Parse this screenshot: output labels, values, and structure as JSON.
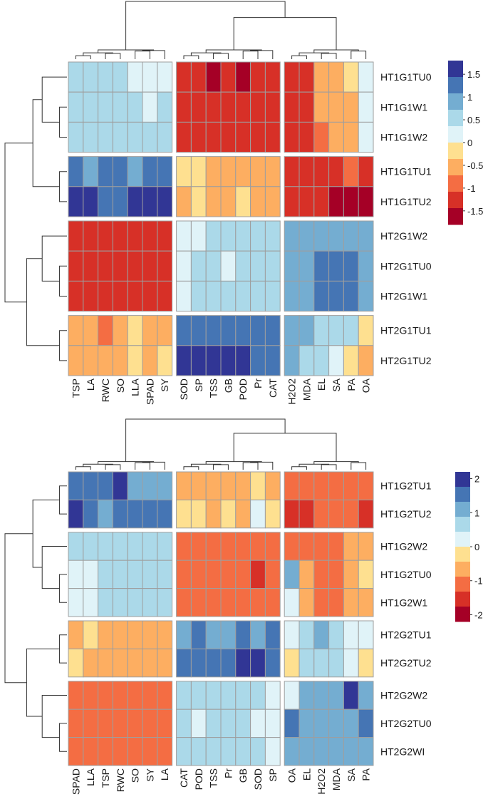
{
  "palette": {
    "cell_border": "#9e9e9e",
    "dendrogram": "#333333",
    "scale": [
      "#a50026",
      "#d73027",
      "#f46d43",
      "#fdae61",
      "#fee090",
      "#e0f3f8",
      "#abd9e9",
      "#74add1",
      "#4575b4",
      "#313695"
    ]
  },
  "chart_data": [
    {
      "type": "heatmap",
      "title": "",
      "rows": [
        "HT1G1TU0",
        "HT1G1W1",
        "HT1G1W2",
        "HT1G1TU1",
        "HT1G1TU2",
        "HT2G1W2",
        "HT2G1TU0",
        "HT2G1W1",
        "HT2G1TU1",
        "HT2G1TU2"
      ],
      "columns": [
        "TSP",
        "LA",
        "RWC",
        "SO",
        "LLA",
        "SPAD",
        "SY",
        "SOD",
        "SP",
        "TSS",
        "GB",
        "POD",
        "Pr",
        "CAT",
        "H2O2",
        "MDA",
        "EL",
        "SA",
        "PA",
        "OA"
      ],
      "row_groups": [
        3,
        2,
        3,
        2
      ],
      "column_groups": [
        7,
        7,
        6
      ],
      "legend": {
        "ticks": [
          1.5,
          1,
          0.5,
          0,
          -0.5,
          -1,
          -1.5
        ],
        "tick_labels": [
          "1.5",
          "1",
          "0.5",
          "0",
          "-0.5",
          "-1",
          "-1.5"
        ],
        "range": [
          -1.8,
          1.8
        ]
      },
      "values": [
        [
          0.5,
          0.5,
          0.5,
          0.5,
          0.2,
          0.2,
          0.2,
          -1.3,
          -1.3,
          -1.6,
          -1.3,
          -1.6,
          -1.3,
          -1.2,
          -1.2,
          -1.2,
          -0.6,
          -0.6,
          -0.2,
          0.2
        ],
        [
          0.5,
          0.5,
          0.5,
          0.5,
          0.5,
          0.2,
          0.5,
          -1.3,
          -1.3,
          -1.2,
          -1.2,
          -1.3,
          -1.2,
          -1.3,
          -1.2,
          -1.2,
          -0.6,
          -0.6,
          -0.6,
          0.2
        ],
        [
          0.5,
          0.5,
          0.5,
          0.5,
          0.5,
          0.5,
          0.5,
          -1.1,
          -1.1,
          -1.1,
          -1.1,
          -1.3,
          -1.1,
          -1.1,
          -1.1,
          -1.1,
          -1.0,
          -0.6,
          -0.6,
          0.2
        ],
        [
          1.1,
          0.9,
          1.2,
          1.1,
          0.9,
          1.2,
          1.2,
          -0.2,
          -0.2,
          -0.6,
          -0.6,
          -0.6,
          -0.6,
          -0.6,
          -1.1,
          -1.1,
          -1.1,
          -1.1,
          -1.0,
          -1.3
        ],
        [
          1.8,
          1.8,
          1.3,
          1.3,
          1.6,
          1.6,
          1.7,
          -0.6,
          -0.3,
          -0.6,
          -0.6,
          -0.2,
          -0.6,
          -0.6,
          -1.1,
          -1.1,
          -1.4,
          -1.8,
          -1.8,
          -1.8
        ],
        [
          -1.1,
          -1.1,
          -1.1,
          -1.2,
          -1.3,
          -1.1,
          -1.1,
          0.2,
          0.2,
          0.5,
          0.5,
          0.5,
          0.5,
          0.5,
          0.9,
          0.9,
          0.9,
          0.9,
          0.9,
          0.9
        ],
        [
          -1.1,
          -1.1,
          -1.3,
          -1.3,
          -1.3,
          -1.1,
          -1.3,
          0.2,
          0.5,
          0.5,
          0.2,
          0.5,
          0.5,
          0.5,
          0.9,
          0.9,
          1.2,
          1.2,
          1.2,
          0.9
        ],
        [
          -1.1,
          -1.1,
          -1.1,
          -1.3,
          -1.3,
          -1.1,
          -1.3,
          0.2,
          0.5,
          0.5,
          0.5,
          0.5,
          0.5,
          0.5,
          0.9,
          0.9,
          1.2,
          1.2,
          1.2,
          0.9
        ],
        [
          -0.6,
          -0.6,
          -1.0,
          -0.6,
          -0.2,
          -0.6,
          -0.6,
          1.2,
          1.2,
          1.2,
          1.2,
          1.2,
          1.2,
          1.2,
          0.9,
          0.9,
          0.5,
          0.5,
          0.5,
          -0.2
        ],
        [
          -0.6,
          -0.6,
          -0.6,
          -0.6,
          -0.2,
          -0.6,
          -0.2,
          1.7,
          1.7,
          1.7,
          1.6,
          1.6,
          1.2,
          1.2,
          0.9,
          0.5,
          0.5,
          0.2,
          -0.2,
          -0.6
        ]
      ]
    },
    {
      "type": "heatmap",
      "title": "",
      "rows": [
        "HT1G2TU1",
        "HT1G2TU2",
        "HT1G2W2",
        "HT1G2TU0",
        "HT1G2W1",
        "HT2G2TU1",
        "HT2G2TU2",
        "HT2G2W2",
        "HT2G2TU0",
        "HT2G2WI"
      ],
      "columns": [
        "SPAD",
        "LLA",
        "TSP",
        "RWC",
        "SO",
        "SY",
        "LA",
        "CAT",
        "POD",
        "TSS",
        "Pr",
        "GB",
        "SOD",
        "SP",
        "OA",
        "EL",
        "H2O2",
        "MDA",
        "SA",
        "PA"
      ],
      "row_groups": [
        2,
        3,
        2,
        3
      ],
      "column_groups": [
        7,
        7,
        6
      ],
      "legend": {
        "ticks": [
          2,
          1,
          0,
          -1,
          -2
        ],
        "tick_labels": [
          "2",
          "1",
          "0",
          "-1",
          "-2"
        ],
        "range": [
          -2.2,
          2.2
        ]
      },
      "values": [
        [
          1.4,
          1.4,
          1.4,
          1.8,
          1.1,
          1.1,
          1.1,
          -0.6,
          -0.6,
          -0.6,
          -0.6,
          -0.6,
          -0.2,
          -0.6,
          -1.0,
          -1.0,
          -1.0,
          -1.0,
          -1.0,
          -1.0
        ],
        [
          2.0,
          1.4,
          1.1,
          1.4,
          1.4,
          1.4,
          1.4,
          -0.2,
          -0.2,
          -0.6,
          -0.2,
          -0.6,
          0.2,
          -0.2,
          -1.4,
          -1.4,
          -1.0,
          -1.0,
          -1.0,
          -1.4
        ],
        [
          0.6,
          0.6,
          0.6,
          0.6,
          0.6,
          0.6,
          0.6,
          -1.0,
          -1.0,
          -1.0,
          -1.0,
          -1.0,
          -1.0,
          -1.0,
          -1.0,
          -1.0,
          -1.0,
          -1.0,
          -0.6,
          -0.6
        ],
        [
          0.2,
          0.2,
          0.6,
          0.6,
          0.6,
          0.6,
          0.6,
          -1.0,
          -1.0,
          -1.0,
          -1.0,
          -1.0,
          -1.6,
          -1.0,
          1.1,
          -0.6,
          -1.0,
          -1.0,
          -0.6,
          -0.2
        ],
        [
          0.2,
          0.2,
          0.6,
          0.6,
          0.6,
          0.6,
          0.6,
          -1.0,
          -1.0,
          -1.0,
          -1.0,
          -1.0,
          -1.0,
          -1.0,
          0.2,
          -0.6,
          -1.0,
          -1.0,
          -0.6,
          -0.6
        ],
        [
          -0.6,
          -0.2,
          -0.6,
          -0.6,
          -0.6,
          -0.6,
          -0.6,
          1.1,
          1.6,
          1.1,
          1.1,
          1.6,
          1.1,
          1.6,
          0.2,
          0.6,
          1.1,
          0.6,
          0.2,
          0.2
        ],
        [
          -0.2,
          -0.6,
          -0.6,
          -0.6,
          -0.6,
          -0.6,
          -0.6,
          1.6,
          1.6,
          1.6,
          1.6,
          2.2,
          2.2,
          1.6,
          -0.2,
          0.6,
          0.6,
          0.6,
          0.2,
          -0.2
        ],
        [
          -1.0,
          -1.0,
          -1.0,
          -1.0,
          -1.0,
          -1.0,
          -1.0,
          0.6,
          0.6,
          0.6,
          0.6,
          0.6,
          0.6,
          0.2,
          0.2,
          1.1,
          1.1,
          1.1,
          2.2,
          1.1
        ],
        [
          -1.0,
          -1.0,
          -1.0,
          -1.0,
          -1.0,
          -1.0,
          -1.0,
          0.6,
          0.2,
          0.6,
          0.6,
          0.6,
          0.2,
          0.2,
          1.6,
          1.1,
          1.1,
          1.1,
          1.1,
          1.6
        ],
        [
          -1.0,
          -1.0,
          -1.0,
          -1.0,
          -1.0,
          -1.0,
          -1.0,
          0.6,
          0.6,
          0.6,
          0.6,
          0.6,
          0.6,
          0.2,
          1.1,
          1.1,
          1.1,
          1.1,
          1.1,
          1.1
        ]
      ]
    }
  ]
}
